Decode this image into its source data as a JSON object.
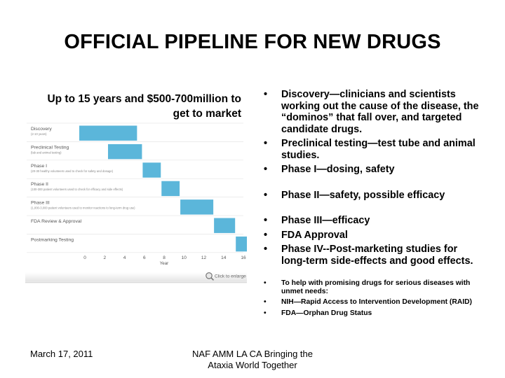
{
  "title": "OFFICIAL PIPELINE FOR NEW DRUGS",
  "subtitle": "Up to 15 years and $500-700million to get to market",
  "chart_data": {
    "type": "gantt",
    "xlabel": "Year",
    "xlim": [
      0,
      16
    ],
    "x_ticks": [
      0,
      2,
      4,
      6,
      8,
      10,
      12,
      14,
      16
    ],
    "bar_color": "#5bb6da",
    "zoom_label": "Click to enlarge",
    "phases": [
      {
        "name": "Discovery",
        "note": "(2-10 years)",
        "start": -0.6,
        "end": 5.3
      },
      {
        "name": "Preclinical Testing",
        "note": "(lab and animal testing)",
        "start": 2.3,
        "end": 5.8
      },
      {
        "name": "Phase I",
        "note": "(20-30 healthy volunteers used to check for safety and dosage)",
        "start": 5.8,
        "end": 7.7
      },
      {
        "name": "Phase II",
        "note": "(100-300 patient volunteers used to check for efficacy and side effects)",
        "start": 7.7,
        "end": 9.6
      },
      {
        "name": "Phase III",
        "note": "(1,000-3,000 patient volunteers used to monitor reactions to long-term drug use)",
        "start": 9.6,
        "end": 13.0
      },
      {
        "name": "FDA Review & Approval",
        "note": "",
        "start": 13.0,
        "end": 15.2
      },
      {
        "name": "Postmarking Testing",
        "note": "",
        "start": 15.2,
        "end": 16.5
      }
    ]
  },
  "bullets": [
    "Discovery—clinicians and scientists working out the cause of the disease, the “dominos” that fall over, and targeted candidate drugs.",
    "Preclinical testing—test tube and animal studies.",
    "Phase I—dosing, safety",
    "Phase II—safety, possible efficacy",
    "Phase III—efficacy",
    "FDA Approval",
    "Phase IV--Post-marketing studies for long-term side-effects and good effects.",
    "To help with promising drugs for serious diseases with unmet needs:",
    "NIH—Rapid Access to Intervention Development (RAID)",
    "FDA—Orphan Drug Status"
  ],
  "footer": {
    "date": "March 17, 2011",
    "event_line1": "NAF AMM LA CA Bringing the",
    "event_line2": "Ataxia World Together"
  }
}
